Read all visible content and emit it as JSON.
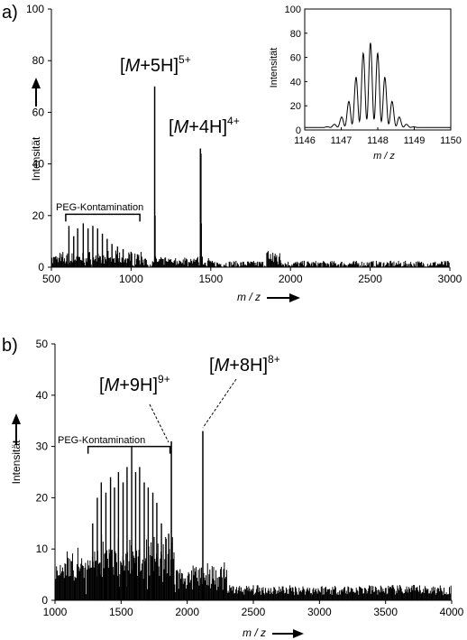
{
  "chart_data": [
    {
      "type": "line",
      "panel_label": "a)",
      "xlabel": "m / z",
      "ylabel": "Intensität",
      "xlim": [
        500,
        3000
      ],
      "ylim": [
        0,
        100
      ],
      "xticks": [
        500,
        1000,
        1500,
        2000,
        2500,
        3000
      ],
      "yticks": [
        0,
        20,
        40,
        60,
        80,
        100
      ],
      "grid": false,
      "peaks": [
        {
          "x": 1148,
          "y": 70
        },
        {
          "x": 1150,
          "y": 20
        },
        {
          "x": 1435,
          "y": 46
        },
        {
          "x": 1438,
          "y": 44
        },
        {
          "x": 1440,
          "y": 17
        }
      ],
      "peg_contamination": {
        "label": "PEG-Kontamination",
        "x_start": 590,
        "x_end": 1055,
        "y": 20.5,
        "peaks": [
          {
            "x": 610,
            "y": 16
          },
          {
            "x": 640,
            "y": 12
          },
          {
            "x": 665,
            "y": 15
          },
          {
            "x": 700,
            "y": 17
          },
          {
            "x": 730,
            "y": 15
          },
          {
            "x": 760,
            "y": 16
          },
          {
            "x": 790,
            "y": 15
          },
          {
            "x": 820,
            "y": 13
          },
          {
            "x": 850,
            "y": 11
          },
          {
            "x": 880,
            "y": 9
          },
          {
            "x": 915,
            "y": 8
          },
          {
            "x": 950,
            "y": 7
          },
          {
            "x": 1000,
            "y": 6
          },
          {
            "x": 1040,
            "y": 5
          }
        ]
      },
      "annotations": [
        {
          "text": "M",
          "prefix": "[",
          "suffix": "+5H]",
          "charge": "5+"
        },
        {
          "text": "M",
          "prefix": "[",
          "suffix": "+4H]",
          "charge": "4+"
        }
      ],
      "inset": {
        "xlabel": "m / z",
        "ylabel": "Intensität",
        "xlim": [
          1146,
          1150
        ],
        "ylim": [
          0,
          100
        ],
        "xticks": [
          1146,
          1147,
          1148,
          1149,
          1150
        ],
        "yticks": [
          0,
          20,
          40,
          60,
          80,
          100
        ],
        "envelope_center": 1147.8,
        "envelope_max": 70,
        "isotope_spacing": 0.2
      }
    },
    {
      "type": "line",
      "panel_label": "b)",
      "xlabel": "m / z",
      "ylabel": "Intensität",
      "xlim": [
        1000,
        4000
      ],
      "ylim": [
        0,
        50
      ],
      "xticks": [
        1000,
        1500,
        2000,
        2500,
        3000,
        3500,
        4000
      ],
      "yticks": [
        0,
        10,
        20,
        30,
        40,
        50
      ],
      "grid": false,
      "peaks": [
        {
          "x": 1880,
          "y": 31
        },
        {
          "x": 2118,
          "y": 33
        }
      ],
      "peg_contamination": {
        "label": "PEG-Kontamination",
        "x_start": 1250,
        "x_end": 1870,
        "y": 30,
        "peaks": [
          {
            "x": 1285,
            "y": 15
          },
          {
            "x": 1320,
            "y": 20
          },
          {
            "x": 1350,
            "y": 23
          },
          {
            "x": 1385,
            "y": 21
          },
          {
            "x": 1420,
            "y": 24
          },
          {
            "x": 1450,
            "y": 22
          },
          {
            "x": 1480,
            "y": 25
          },
          {
            "x": 1515,
            "y": 23
          },
          {
            "x": 1545,
            "y": 26
          },
          {
            "x": 1580,
            "y": 30
          },
          {
            "x": 1610,
            "y": 25
          },
          {
            "x": 1640,
            "y": 26
          },
          {
            "x": 1675,
            "y": 23
          },
          {
            "x": 1705,
            "y": 22
          },
          {
            "x": 1740,
            "y": 21
          },
          {
            "x": 1770,
            "y": 19
          },
          {
            "x": 1805,
            "y": 15
          },
          {
            "x": 1840,
            "y": 12
          },
          {
            "x": 1860,
            "y": 13
          }
        ]
      },
      "annotations": [
        {
          "text": "M",
          "prefix": "[",
          "suffix": "+9H]",
          "charge": "9+"
        },
        {
          "text": "M",
          "prefix": "[",
          "suffix": "+8H]",
          "charge": "8+"
        }
      ]
    }
  ]
}
